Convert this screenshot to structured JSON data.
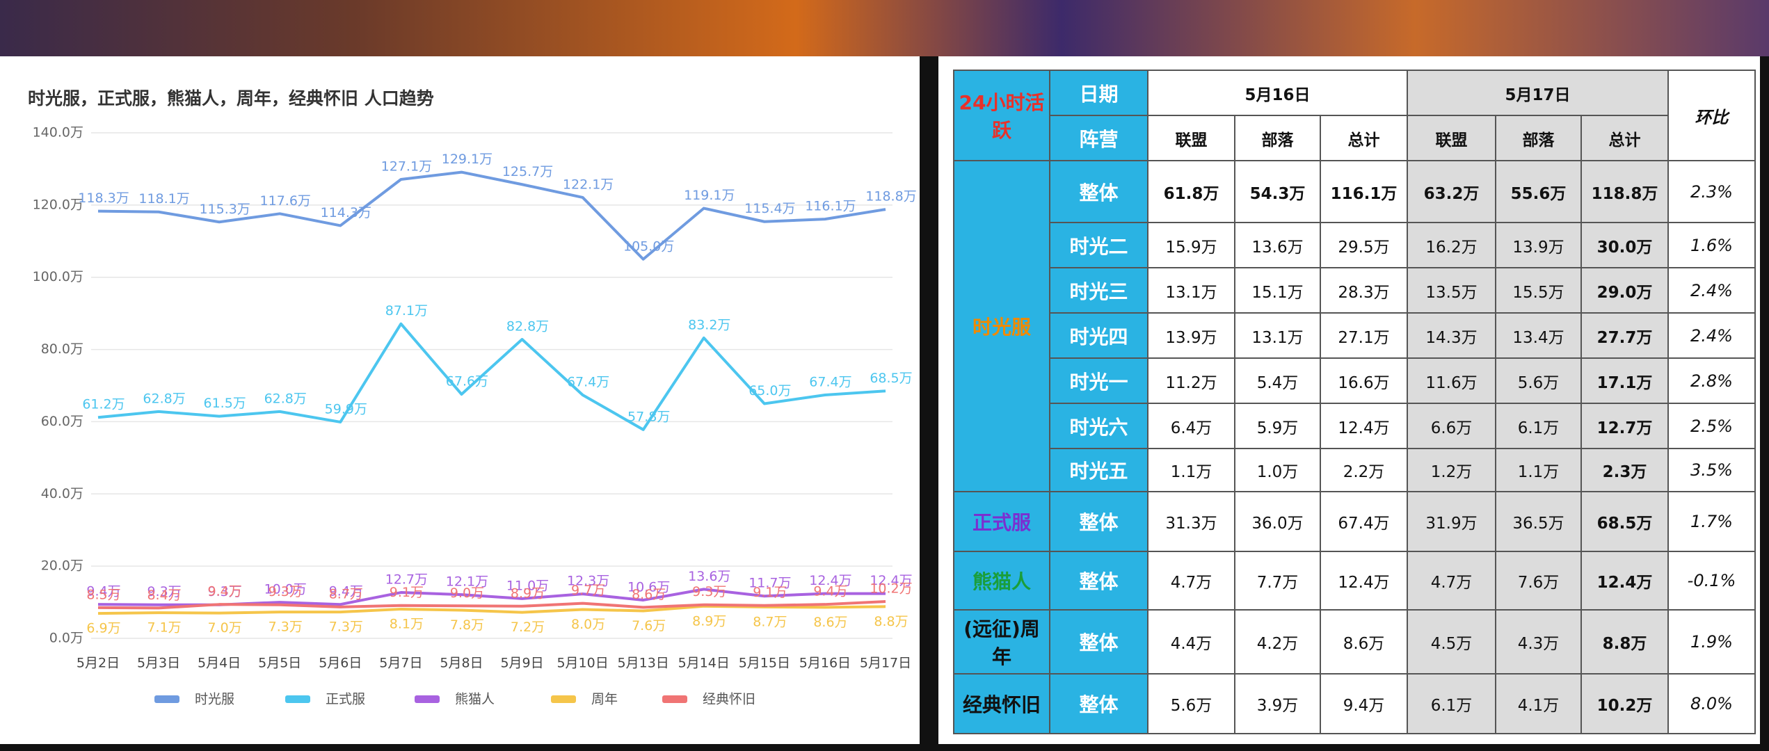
{
  "chart_data": {
    "type": "line",
    "title": "时光服，正式服，熊猫人，周年，经典怀旧 人口趋势",
    "categories": [
      "5月2日",
      "5月3日",
      "5月4日",
      "5月5日",
      "5月6日",
      "5月7日",
      "5月8日",
      "5月9日",
      "5月10日",
      "5月13日",
      "5月14日",
      "5月15日",
      "5月16日",
      "5月17日"
    ],
    "series": [
      {
        "name": "时光服",
        "color": "#6f9be0",
        "values": [
          118.3,
          118.1,
          115.3,
          117.6,
          114.3,
          127.1,
          129.1,
          125.7,
          122.1,
          105.0,
          119.1,
          115.4,
          116.1,
          118.8
        ],
        "value_labels": [
          "118.3万",
          "118.1万",
          "115.3万",
          "117.6万",
          "114.3万",
          "127.1万",
          "129.1万",
          "125.7万",
          "122.1万",
          "105.0万",
          "119.1万",
          "115.4万",
          "116.1万",
          "118.8万"
        ]
      },
      {
        "name": "正式服",
        "color": "#4cc6ef",
        "values": [
          61.2,
          62.8,
          61.5,
          62.8,
          59.9,
          87.1,
          67.6,
          82.8,
          67.4,
          57.8,
          83.2,
          65.0,
          67.4,
          68.5
        ],
        "value_labels": [
          "61.2万",
          "62.8万",
          "61.5万",
          "62.8万",
          "59.9万",
          "87.1万",
          "67.6万",
          "82.8万",
          "67.4万",
          "57.8万",
          "83.2万",
          "65.0万",
          "67.4万",
          "68.5万"
        ]
      },
      {
        "name": "熊猫人",
        "color": "#a862e0",
        "values": [
          9.4,
          9.3,
          9.3,
          10.0,
          9.4,
          12.7,
          12.1,
          11.0,
          12.3,
          10.6,
          13.6,
          11.7,
          12.4,
          12.4
        ],
        "value_labels": [
          "9.4万",
          "9.3万",
          "9.3万",
          "10.0万",
          "9.4万",
          "12.7万",
          "12.1万",
          "11.0万",
          "12.3万",
          "10.6万",
          "13.6万",
          "11.7万",
          "12.4万",
          "12.4万"
        ]
      },
      {
        "name": "周年",
        "color": "#f5c54a",
        "values": [
          6.9,
          7.1,
          7.0,
          7.3,
          7.3,
          8.1,
          7.8,
          7.2,
          8.0,
          7.6,
          8.9,
          8.7,
          8.6,
          8.8
        ],
        "value_labels": [
          "6.9万",
          "7.1万",
          "7.0万",
          "7.3万",
          "7.3万",
          "8.1万",
          "7.8万",
          "7.2万",
          "8.0万",
          "7.6万",
          "8.9万",
          "8.7万",
          "8.6万",
          "8.8万"
        ]
      },
      {
        "name": "经典怀旧",
        "color": "#f07474",
        "values": [
          8.5,
          8.4,
          9.4,
          9.3,
          8.7,
          9.1,
          9.0,
          8.9,
          9.7,
          8.6,
          9.3,
          9.1,
          9.4,
          10.2
        ],
        "value_labels": [
          "8.5万",
          "8.4万",
          "9.4万",
          "9.3万",
          "8.7万",
          "9.1万",
          "9.0万",
          "8.9万",
          "9.7万",
          "8.6万",
          "9.3万",
          "9.1万",
          "9.4万",
          "10.2万"
        ]
      }
    ],
    "ylim": [
      0,
      140
    ],
    "yticks": [
      {
        "value": 0,
        "label": "0.0万"
      },
      {
        "value": 20,
        "label": "20.0万"
      },
      {
        "value": 40,
        "label": "40.0万"
      },
      {
        "value": 60,
        "label": "60.0万"
      },
      {
        "value": 80,
        "label": "80.0万"
      },
      {
        "value": 100,
        "label": "100.0万"
      },
      {
        "value": 120,
        "label": "120.0万"
      },
      {
        "value": 140,
        "label": "140.0万"
      }
    ],
    "grid": true,
    "legend": "bottom"
  },
  "table": {
    "corner": "24小时活跃",
    "date_label": "日期",
    "camp_label": "阵营",
    "dates": [
      "5月16日",
      "5月17日"
    ],
    "columns": [
      "联盟",
      "部落",
      "总计",
      "联盟",
      "部落",
      "总计"
    ],
    "change_label": "环比",
    "groups": [
      {
        "name": "时光服",
        "rows": [
          {
            "label": "整体",
            "cells": [
              "61.8万",
              "54.3万",
              "116.1万",
              "63.2万",
              "55.6万",
              "118.8万"
            ],
            "change": "2.3%"
          },
          {
            "label": "时光二",
            "cells": [
              "15.9万",
              "13.6万",
              "29.5万",
              "16.2万",
              "13.9万",
              "30.0万"
            ],
            "change": "1.6%"
          },
          {
            "label": "时光三",
            "cells": [
              "13.1万",
              "15.1万",
              "28.3万",
              "13.5万",
              "15.5万",
              "29.0万"
            ],
            "change": "2.4%"
          },
          {
            "label": "时光四",
            "cells": [
              "13.9万",
              "13.1万",
              "27.1万",
              "14.3万",
              "13.4万",
              "27.7万"
            ],
            "change": "2.4%"
          },
          {
            "label": "时光一",
            "cells": [
              "11.2万",
              "5.4万",
              "16.6万",
              "11.6万",
              "5.6万",
              "17.1万"
            ],
            "change": "2.8%"
          },
          {
            "label": "时光六",
            "cells": [
              "6.4万",
              "5.9万",
              "12.4万",
              "6.6万",
              "6.1万",
              "12.7万"
            ],
            "change": "2.5%"
          },
          {
            "label": "时光五",
            "cells": [
              "1.1万",
              "1.0万",
              "2.2万",
              "1.2万",
              "1.1万",
              "2.3万"
            ],
            "change": "3.5%"
          }
        ]
      },
      {
        "name": "正式服",
        "rows": [
          {
            "label": "整体",
            "cells": [
              "31.3万",
              "36.0万",
              "67.4万",
              "31.9万",
              "36.5万",
              "68.5万"
            ],
            "change": "1.7%"
          }
        ]
      },
      {
        "name": "熊猫人",
        "rows": [
          {
            "label": "整体",
            "cells": [
              "4.7万",
              "7.7万",
              "12.4万",
              "4.7万",
              "7.6万",
              "12.4万"
            ],
            "change": "-0.1%"
          }
        ]
      },
      {
        "name": "(远征)周年",
        "rows": [
          {
            "label": "整体",
            "cells": [
              "4.4万",
              "4.2万",
              "8.6万",
              "4.5万",
              "4.3万",
              "8.8万"
            ],
            "change": "1.9%"
          }
        ]
      },
      {
        "name": "经典怀旧",
        "rows": [
          {
            "label": "整体",
            "cells": [
              "5.6万",
              "3.9万",
              "9.4万",
              "6.1万",
              "4.1万",
              "10.2万"
            ],
            "change": "8.0%"
          }
        ]
      }
    ]
  }
}
